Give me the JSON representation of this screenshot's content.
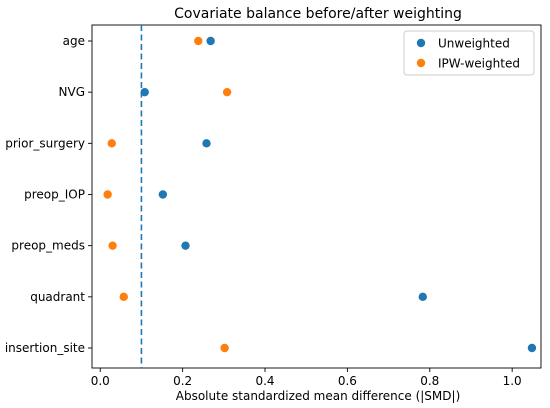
{
  "chart_data": {
    "type": "scatter",
    "title": "Covariate balance before/after weighting",
    "xlabel": "Absolute standardized mean difference (|SMD|)",
    "ylabel": "",
    "xlim": [
      -0.02,
      1.07
    ],
    "xticks": [
      0.0,
      0.2,
      0.4,
      0.6,
      0.8,
      1.0
    ],
    "xtick_labels": [
      "0.0",
      "0.2",
      "0.4",
      "0.6",
      "0.8",
      "1.0"
    ],
    "categories": [
      "age",
      "NVG",
      "prior_surgery",
      "preop_IOP",
      "preop_meds",
      "quadrant",
      "insertion_site"
    ],
    "series": [
      {
        "name": "Unweighted",
        "color": "#1f77b4",
        "values": [
          0.268,
          0.108,
          0.258,
          0.152,
          0.207,
          0.783,
          1.048
        ]
      },
      {
        "name": "IPW-weighted",
        "color": "#ff7f0e",
        "values": [
          0.238,
          0.308,
          0.028,
          0.018,
          0.03,
          0.057,
          0.302
        ]
      }
    ],
    "reference_line": {
      "x": 0.1,
      "style": "dashed",
      "color": "#1f77b4"
    },
    "legend_position": "top-right",
    "grid": false
  }
}
